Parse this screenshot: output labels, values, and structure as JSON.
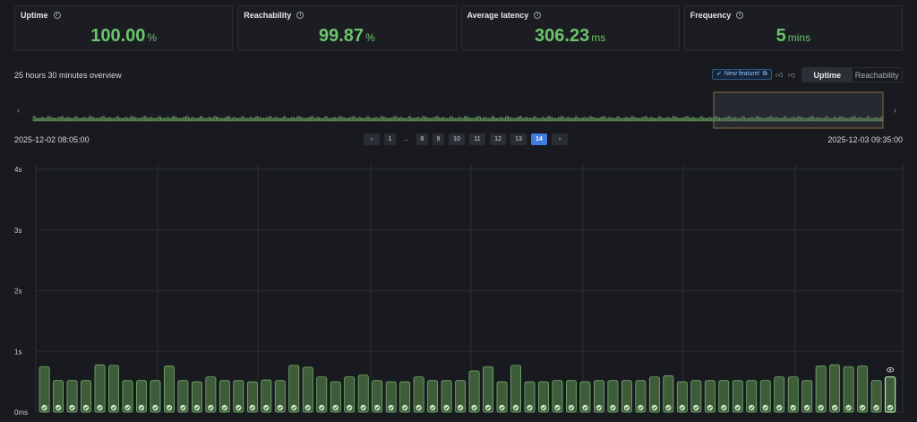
{
  "cards": [
    {
      "label": "Uptime",
      "value": "100.00",
      "unit": "%"
    },
    {
      "label": "Reachability",
      "value": "99.87",
      "unit": "%"
    },
    {
      "label": "Average latency",
      "value": "306.23",
      "unit": "ms"
    },
    {
      "label": "Frequency",
      "value": "5",
      "unit": "mins"
    }
  ],
  "overview": {
    "title": "25 hours 30 minutes overview",
    "new_feature": "New feature!",
    "tabs": [
      "Uptime",
      "Reachability"
    ],
    "active_tab": "Uptime",
    "start_date": "2025-12-02 08:05:00",
    "end_date": "2025-12-03 09:35:00",
    "prev_arrow": "‹",
    "next_arrow": "›"
  },
  "pagination": {
    "prev": "‹",
    "next": "›",
    "pages": [
      "1",
      "…",
      "8",
      "9",
      "10",
      "11",
      "12",
      "13",
      "14"
    ],
    "selected": "14"
  },
  "colors": {
    "accent": "#6bc46b",
    "bar_fill": "#3e5c3a",
    "bar_stroke": "#7fbf76",
    "selected": "#3f7de0"
  },
  "chart_data": {
    "type": "bar",
    "ylabel": "",
    "yticks": [
      "0ms",
      "1s",
      "2s",
      "3s",
      "4s"
    ],
    "ylim": [
      0,
      4
    ],
    "grid": true,
    "values": [
      0.75,
      0.52,
      0.52,
      0.52,
      0.78,
      0.77,
      0.52,
      0.52,
      0.52,
      0.76,
      0.52,
      0.5,
      0.58,
      0.52,
      0.52,
      0.5,
      0.53,
      0.52,
      0.77,
      0.74,
      0.58,
      0.5,
      0.58,
      0.61,
      0.52,
      0.5,
      0.5,
      0.58,
      0.52,
      0.52,
      0.52,
      0.68,
      0.75,
      0.5,
      0.77,
      0.5,
      0.5,
      0.52,
      0.52,
      0.5,
      0.52,
      0.52,
      0.52,
      0.52,
      0.58,
      0.6,
      0.5,
      0.52,
      0.52,
      0.52,
      0.52,
      0.52,
      0.52,
      0.58,
      0.58,
      0.52,
      0.76,
      0.78,
      0.75,
      0.76,
      0.52,
      0.58
    ]
  }
}
